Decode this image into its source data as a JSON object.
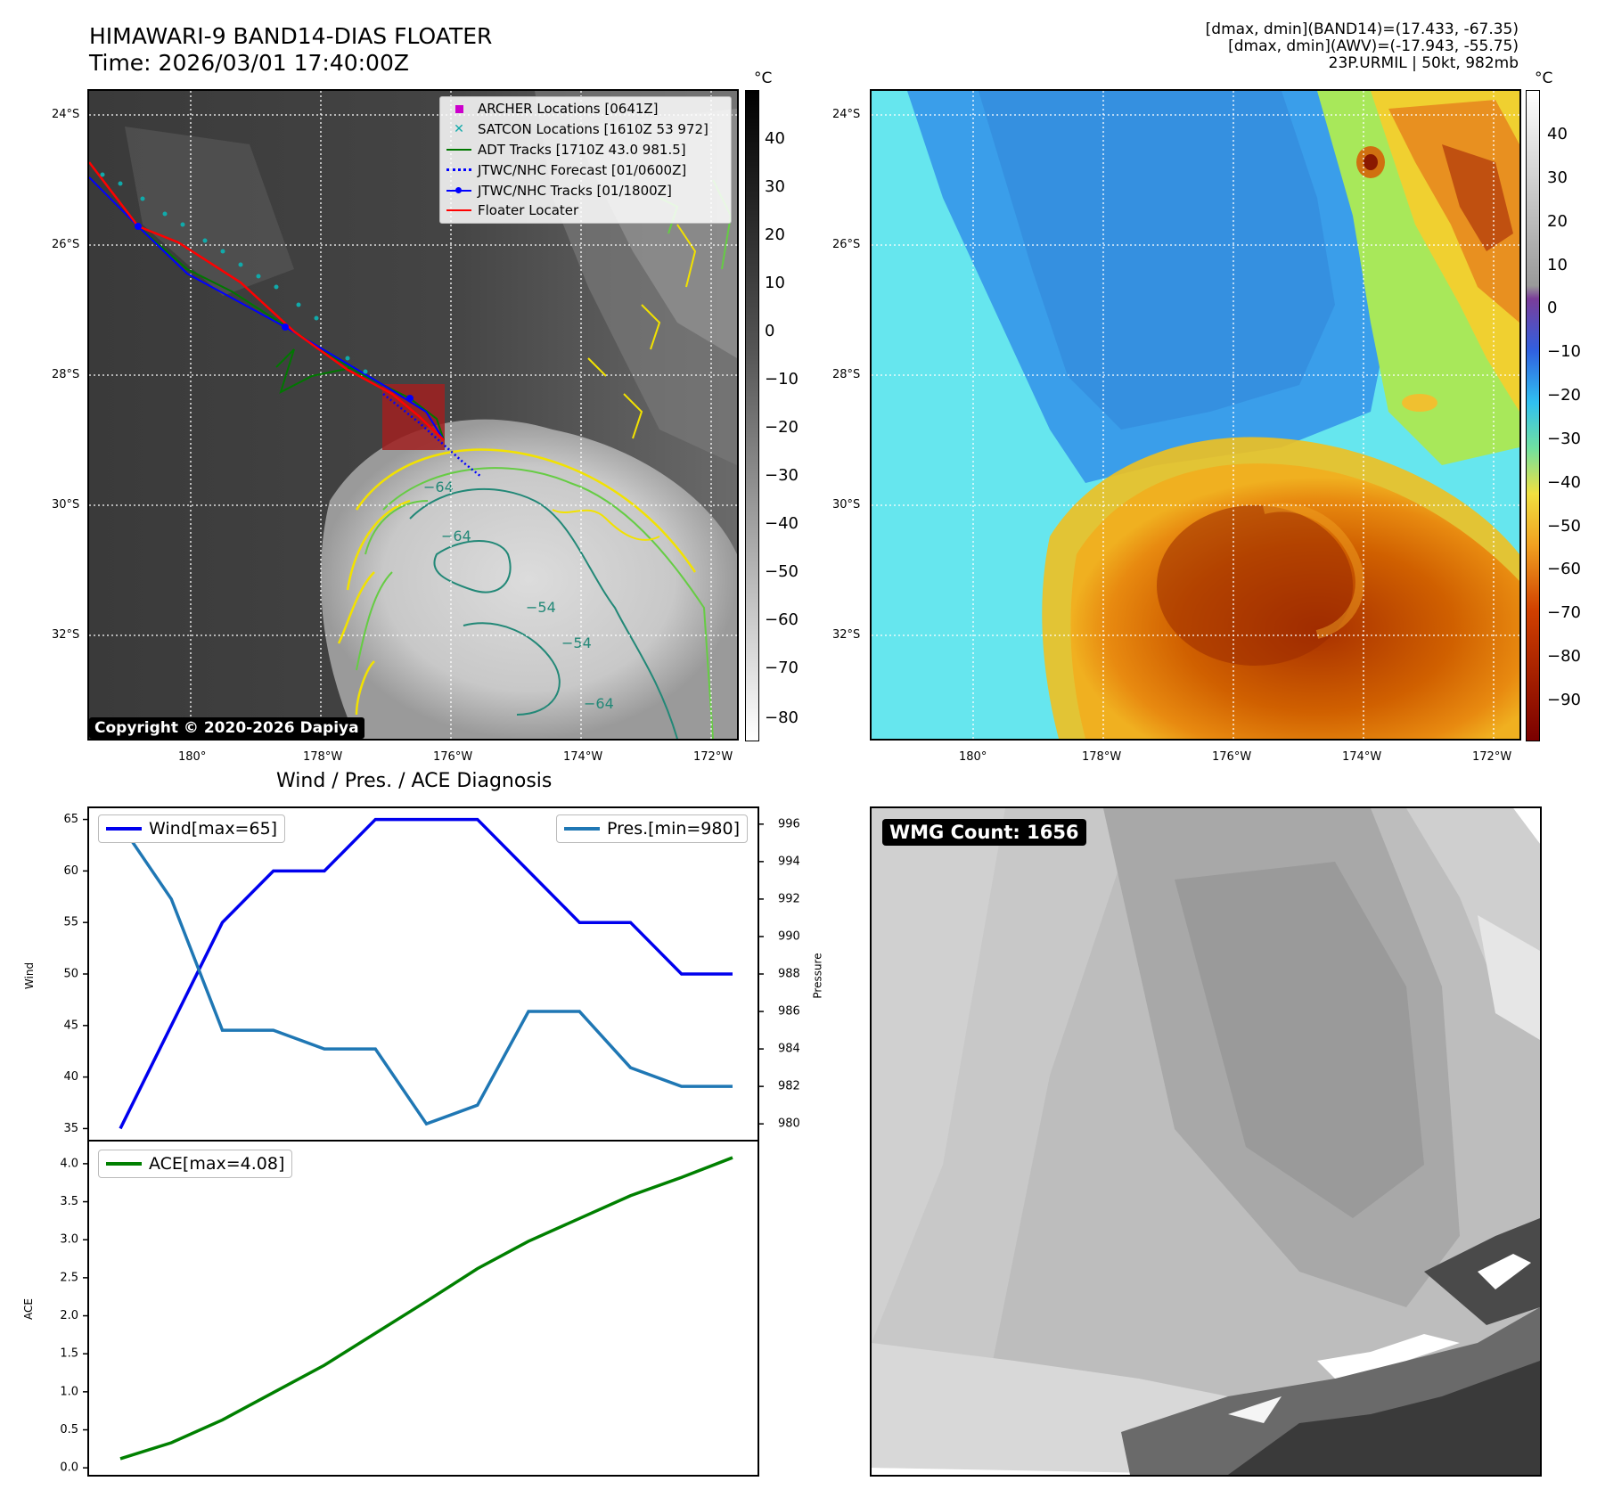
{
  "header": {
    "title_line1": "HIMAWARI-9 BAND14-DIAS FLOATER",
    "title_line2": "Time: 2026/03/01 17:40:00Z",
    "info_line1": "[dmax, dmin](BAND14)=(17.433, -67.35)",
    "info_line2": "[dmax, dmin](AWV)=(-17.943, -55.75)",
    "info_line3": "23P.URMIL | 50kt, 982mb"
  },
  "map": {
    "lat_labels": [
      "24°S",
      "26°S",
      "28°S",
      "30°S",
      "32°S"
    ],
    "lon_labels": [
      "180°",
      "178°W",
      "176°W",
      "174°W",
      "172°W"
    ],
    "colorbar_unit": "°C",
    "ir_colorbar_ticks": [
      "40",
      "30",
      "20",
      "10",
      "0",
      "−10",
      "−20",
      "−30",
      "−40",
      "−50",
      "−60",
      "−70",
      "−80"
    ],
    "color_colorbar_ticks": [
      "40",
      "30",
      "20",
      "10",
      "0",
      "−10",
      "−20",
      "−30",
      "−40",
      "−50",
      "−60",
      "−70",
      "−80",
      "−90"
    ],
    "contour_labels": [
      "−64",
      "−64",
      "−64",
      "−54",
      "−54"
    ],
    "copyright": "Copyright © 2020-2026 Dapiya",
    "legend": [
      {
        "label": "ARCHER Locations [0641Z]",
        "color": "#cc00cc",
        "marker": "square"
      },
      {
        "label": "SATCON Locations [1610Z 53 972]",
        "color": "#11aaaa",
        "marker": "x"
      },
      {
        "label": "ADT Tracks [1710Z 43.0 981.5]",
        "color": "#007700",
        "marker": "line"
      },
      {
        "label": "JTWC/NHC Forecast [01/0600Z]",
        "color": "#0000ff",
        "marker": "dotted"
      },
      {
        "label": "JTWC/NHC Tracks [01/1800Z]",
        "color": "#0000ff",
        "marker": "line-dot"
      },
      {
        "label": "Floater Locater",
        "color": "#ff0000",
        "marker": "line"
      }
    ]
  },
  "diagnosis": {
    "title": "Wind / Pres. / ACE Diagnosis",
    "wind_ylabel": "Wind",
    "pres_ylabel": "Pressure",
    "ace_ylabel": "ACE",
    "wind_legend": "Wind[max=65]",
    "pres_legend": "Pres.[min=980]",
    "ace_legend": "ACE[max=4.08]"
  },
  "wmg": {
    "label": "WMG Count: 1656"
  },
  "chart_data": [
    {
      "type": "line",
      "title": "Wind / Pres. / ACE Diagnosis",
      "x": [
        0,
        1,
        2,
        3,
        4,
        5,
        6,
        7,
        8,
        9,
        10,
        11,
        12
      ],
      "series": [
        {
          "name": "Wind[max=65]",
          "axis": "left",
          "color": "#0000ee",
          "values": [
            35,
            45,
            55,
            60,
            60,
            65,
            65,
            65,
            60,
            55,
            55,
            50,
            50
          ]
        },
        {
          "name": "Pres.[min=980]",
          "axis": "right",
          "color": "#1f77b4",
          "values": [
            996,
            992,
            985,
            985,
            984,
            984,
            980,
            981,
            986,
            986,
            983,
            982,
            982
          ]
        }
      ],
      "ylabel": "Wind",
      "ylabel_right": "Pressure",
      "ylim": [
        34,
        66
      ],
      "ylim_right": [
        979.2,
        996.8
      ],
      "yticks": [
        35,
        40,
        45,
        50,
        55,
        60,
        65
      ],
      "yticks_right": [
        980,
        982,
        984,
        986,
        988,
        990,
        992,
        994,
        996
      ]
    },
    {
      "type": "line",
      "x": [
        0,
        1,
        2,
        3,
        4,
        5,
        6,
        7,
        8,
        9,
        10,
        11,
        12
      ],
      "series": [
        {
          "name": "ACE[max=4.08]",
          "color": "#008000",
          "values": [
            0.12,
            0.33,
            0.63,
            0.99,
            1.35,
            1.77,
            2.19,
            2.62,
            2.98,
            3.28,
            3.58,
            3.82,
            4.08
          ]
        }
      ],
      "ylabel": "ACE",
      "ylim": [
        -0.08,
        4.28
      ],
      "yticks": [
        0.0,
        0.5,
        1.0,
        1.5,
        2.0,
        2.5,
        3.0,
        3.5,
        4.0
      ],
      "ytick_labels": [
        "0.0",
        "0.5",
        "1.0",
        "1.5",
        "2.0",
        "2.5",
        "3.0",
        "3.5",
        "4.0"
      ]
    }
  ]
}
